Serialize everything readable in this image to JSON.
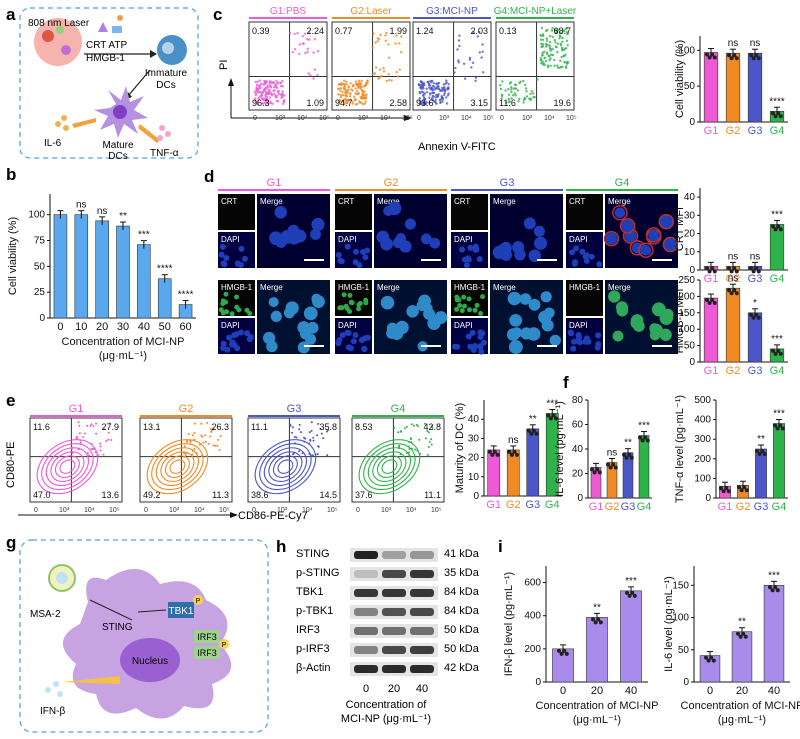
{
  "panels": [
    "a",
    "b",
    "c",
    "d",
    "e",
    "f",
    "g",
    "h",
    "i"
  ],
  "colors": {
    "G1": "#ee59d6",
    "G2": "#f08a24",
    "G3": "#4b56c8",
    "G4": "#2db34a",
    "bar_b": "#5aa8ee",
    "bar_i": "#a88bea",
    "cell": "#b08ad8"
  },
  "panel_a": {
    "laser": "808 nm Laser",
    "crt": "CRT ATP",
    "hmgb": "HMGB-1",
    "immature1": "Immature",
    "immature2": "DCs",
    "mature1": "Mature",
    "mature2": "DCs",
    "il6": "IL-6",
    "tnf": "TNF-α"
  },
  "panel_c": {
    "groups": [
      {
        "title": "G1:PBS",
        "q": [
          "0.39",
          "2.24",
          "96.3",
          "1.09"
        ]
      },
      {
        "title": "G2:Laser",
        "q": [
          "0.77",
          "1.99",
          "94.7",
          "2.58"
        ]
      },
      {
        "title": "G3:MCI-NP",
        "q": [
          "1.24",
          "2.03",
          "93.6",
          "3.15"
        ]
      },
      {
        "title": "G4:MCI-NP+Laser",
        "q": [
          "0.13",
          "68.7",
          "11.6",
          "19.6"
        ]
      }
    ],
    "ylabel": "PI",
    "xlabel": "Annexin V-FITC",
    "ticks": [
      "0",
      "10³",
      "10⁴",
      "10⁵"
    ]
  },
  "panel_d": {
    "groups": [
      "G1",
      "G2",
      "G3",
      "G4"
    ],
    "crt": "CRT",
    "dapi": "DAPI",
    "merge": "Merge",
    "hmgb": "HMGB-1"
  },
  "panel_e": {
    "groups": [
      "G1",
      "G2",
      "G3",
      "G4"
    ],
    "q": [
      [
        "11.6",
        "27.9",
        "47.0",
        "13.6"
      ],
      [
        "13.1",
        "26.3",
        "49.2",
        "11.3"
      ],
      [
        "11.1",
        "35.8",
        "38.6",
        "14.5"
      ],
      [
        "8.53",
        "42.8",
        "37.6",
        "11.1"
      ]
    ],
    "ylabel": "CD80-PE",
    "xlabel": "CD86-PE-Cy7",
    "ticks": [
      "0",
      "10³",
      "10⁴",
      "10⁵"
    ]
  },
  "panel_g": {
    "msa": "MSA-2",
    "sting": "STING",
    "tbk": "TBK1",
    "nucleus": "Nucleus",
    "irf": "IRF3",
    "p": "P",
    "ifn": "IFN-β"
  },
  "panel_h": {
    "rows": [
      {
        "label": "STING",
        "kda": "41 kDa"
      },
      {
        "label": "p-STING",
        "kda": "35 kDa"
      },
      {
        "label": "TBK1",
        "kda": "84 kDa"
      },
      {
        "label": "p-TBK1",
        "kda": "84 kDa"
      },
      {
        "label": "IRF3",
        "kda": "50 kDa"
      },
      {
        "label": "p-IRF3",
        "kda": "50 kDa"
      },
      {
        "label": "β-Actin",
        "kda": "42 kDa"
      }
    ],
    "xticks": [
      "0",
      "20",
      "40"
    ],
    "xlabel1": "Concentration of",
    "xlabel2": "MCI-NP  (μg·mL⁻¹)"
  },
  "chart_data": [
    {
      "panel": "b",
      "type": "bar",
      "categories": [
        "0",
        "10",
        "20",
        "30",
        "40",
        "50",
        "60"
      ],
      "values": [
        100,
        100,
        94,
        89,
        71,
        38,
        13
      ],
      "significance": [
        "",
        "ns",
        "ns",
        "**",
        "***",
        "****",
        "****"
      ],
      "ylabel": "Cell viability (%)",
      "xlabel": "Concentration of MCI-NP (μg·mL⁻¹)",
      "ylim": [
        0,
        120
      ],
      "yticks": [
        "0",
        "25",
        "50",
        "75",
        "100"
      ]
    },
    {
      "panel": "c",
      "type": "bar",
      "categories": [
        "G1",
        "G2",
        "G3",
        "G4"
      ],
      "values": [
        97,
        96,
        96,
        15
      ],
      "significance": [
        "",
        "ns",
        "ns",
        "****"
      ],
      "ylabel": "Cell viability (%)",
      "ylim": [
        0,
        120
      ],
      "yticks": [
        "0",
        "50",
        "100"
      ]
    },
    {
      "panel": "d-crt",
      "type": "bar",
      "categories": [
        "G1",
        "G2",
        "G3",
        "G4"
      ],
      "values": [
        2,
        2,
        2,
        25
      ],
      "significance": [
        "",
        "ns",
        "ns",
        "***"
      ],
      "ylabel": "CRT MFI",
      "ylim": [
        0,
        45
      ],
      "yticks": [
        "0",
        "10",
        "20",
        "30",
        "40"
      ]
    },
    {
      "panel": "d-hmgb",
      "type": "bar",
      "categories": [
        "G1",
        "G2",
        "G3",
        "G4"
      ],
      "values": [
        195,
        225,
        150,
        40
      ],
      "significance": [
        "",
        "ns",
        "*",
        "***"
      ],
      "ylabel": "HMGB-1 MFI",
      "ylim": [
        0,
        250
      ],
      "yticks": [
        "0",
        "50",
        "100",
        "150",
        "200",
        "250"
      ]
    },
    {
      "panel": "e",
      "type": "bar",
      "categories": [
        "G1",
        "G2",
        "G3",
        "G4"
      ],
      "values": [
        24,
        24,
        35,
        43
      ],
      "significance": [
        "",
        "ns",
        "**",
        "***"
      ],
      "ylabel": "Maturity of DC (%)",
      "ylim": [
        0,
        50
      ],
      "yticks": [
        "0",
        "10",
        "20",
        "30",
        "40"
      ]
    },
    {
      "panel": "f-il6",
      "type": "bar",
      "categories": [
        "G1",
        "G2",
        "G3",
        "G4"
      ],
      "values": [
        25,
        29,
        37,
        51
      ],
      "significance": [
        "",
        "ns",
        "**",
        "***"
      ],
      "ylabel": "IL-6 level (pg·mL⁻¹)",
      "ylim": [
        0,
        80
      ],
      "yticks": [
        "0",
        "20",
        "40",
        "60",
        "80"
      ]
    },
    {
      "panel": "f-tnf",
      "type": "bar",
      "categories": [
        "G1",
        "G2",
        "G3",
        "G4"
      ],
      "values": [
        60,
        65,
        250,
        380
      ],
      "significance": [
        "",
        "",
        "**",
        "***"
      ],
      "ylabel": "TNF-α level (pg·mL⁻¹)",
      "ylim": [
        0,
        500
      ],
      "yticks": [
        "0",
        "100",
        "200",
        "300",
        "400",
        "500"
      ]
    },
    {
      "panel": "i-ifn",
      "type": "bar",
      "categories": [
        "0",
        "20",
        "40"
      ],
      "values": [
        200,
        390,
        550
      ],
      "significance": [
        "",
        "**",
        "***"
      ],
      "ylabel": "IFN-β level (pg·mL⁻¹)",
      "xlabel": "Concentration of MCI-NP (μg·mL⁻¹)",
      "ylim": [
        0,
        700
      ],
      "yticks": [
        "0",
        "200",
        "400",
        "600"
      ]
    },
    {
      "panel": "i-il6",
      "type": "bar",
      "categories": [
        "0",
        "20",
        "40"
      ],
      "values": [
        41,
        78,
        150
      ],
      "significance": [
        "",
        "**",
        "***"
      ],
      "ylabel": "IL-6 level (pg·mL⁻¹)",
      "xlabel": "Concentration of MCI-NP (μg·mL⁻¹)",
      "ylim": [
        0,
        180
      ],
      "yticks": [
        "0",
        "50",
        "100",
        "150"
      ]
    }
  ]
}
